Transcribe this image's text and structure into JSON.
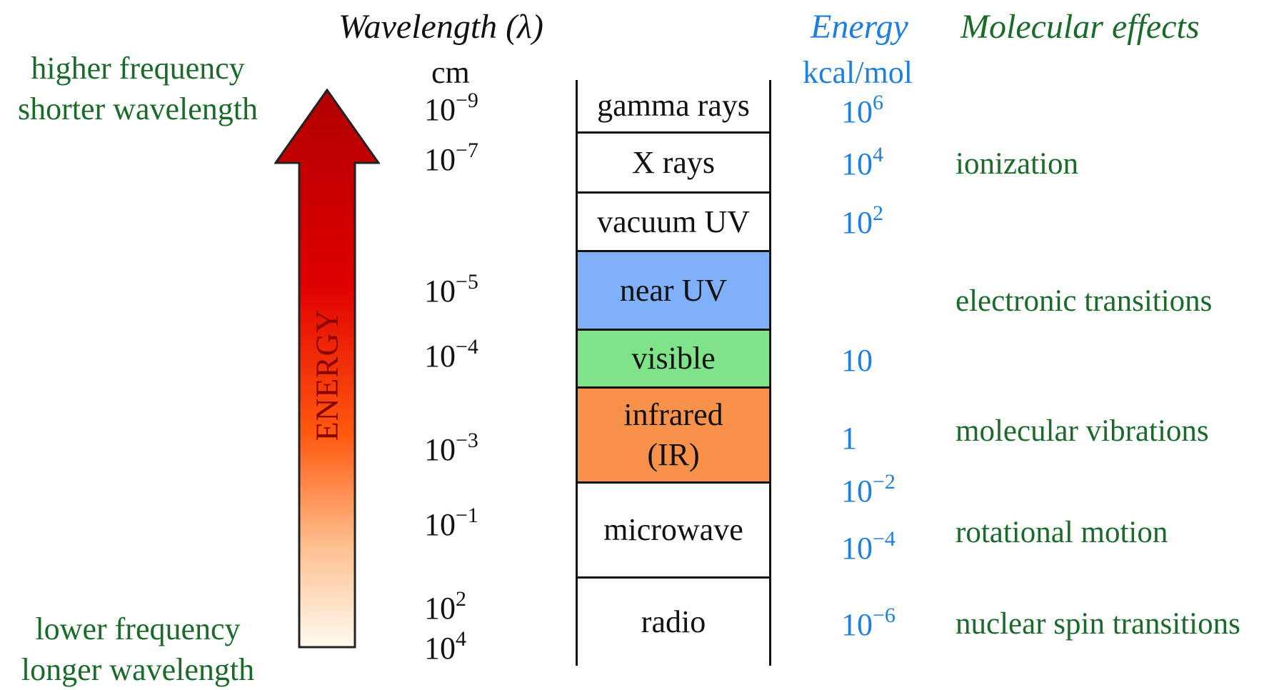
{
  "headers": {
    "wavelength": "Wavelength (λ)",
    "wavelength_unit": "cm",
    "energy": "Energy",
    "energy_unit": "kcal/mol",
    "effects": "Molecular effects"
  },
  "side_labels": {
    "top_line1": "higher frequency",
    "top_line2": "shorter wavelength",
    "bottom_line1": "lower frequency",
    "bottom_line2": "longer wavelength",
    "arrow_label": "ENERGY"
  },
  "colors": {
    "green_text": "#1a6b2a",
    "blue_text": "#1f7fe0",
    "near_uv": "#7fb0f8",
    "visible": "#7fe38a",
    "infrared": "#f8914a",
    "arrow_top": "#c40000",
    "arrow_bottom": "#fffaf0"
  },
  "wavelengths": [
    {
      "base": "10",
      "exp": "−9"
    },
    {
      "base": "10",
      "exp": "−7"
    },
    {
      "base": "10",
      "exp": "−5"
    },
    {
      "base": "10",
      "exp": "−4"
    },
    {
      "base": "10",
      "exp": "−3"
    },
    {
      "base": "10",
      "exp": "−1"
    },
    {
      "base": "10",
      "exp": "2"
    },
    {
      "base": "10",
      "exp": "4"
    }
  ],
  "bands": [
    {
      "label": "gamma rays",
      "color": "#ffffff"
    },
    {
      "label": "X rays",
      "color": "#ffffff"
    },
    {
      "label": "vacuum UV",
      "color": "#ffffff"
    },
    {
      "label": "near UV",
      "color": "#7fb0f8"
    },
    {
      "label": "visible",
      "color": "#7fe38a"
    },
    {
      "label": "infrared",
      "label2": "(IR)",
      "color": "#f8914a"
    },
    {
      "label": "microwave",
      "color": "#ffffff"
    },
    {
      "label": "radio",
      "color": "#ffffff"
    }
  ],
  "energies": [
    {
      "base": "10",
      "exp": "6"
    },
    {
      "base": "10",
      "exp": "4"
    },
    {
      "base": "10",
      "exp": "2"
    },
    {
      "base": "10",
      "exp": ""
    },
    {
      "base": "1",
      "exp": ""
    },
    {
      "base": "10",
      "exp": "−2"
    },
    {
      "base": "10",
      "exp": "−4"
    },
    {
      "base": "10",
      "exp": "−6"
    }
  ],
  "effects": [
    "ionization",
    "electronic transitions",
    "molecular vibrations",
    "rotational motion",
    "nuclear spin transitions"
  ]
}
